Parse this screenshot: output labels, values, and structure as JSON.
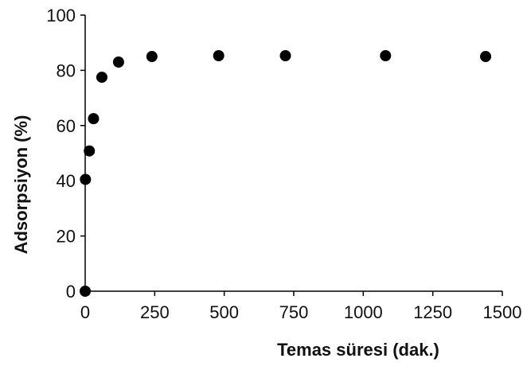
{
  "chart_data": {
    "type": "scatter",
    "xlabel": "Temas süresi (dak.)",
    "ylabel": "Adsorpsiyon (%)",
    "xlim": [
      0,
      1500
    ],
    "ylim": [
      0,
      100
    ],
    "xticks": [
      0,
      250,
      500,
      750,
      1000,
      1250,
      1500
    ],
    "yticks": [
      0,
      20,
      40,
      60,
      80,
      100
    ],
    "grid": false,
    "legend": "none",
    "marker_color": "#000000",
    "series": [
      {
        "x": [
          0,
          1,
          15,
          30,
          60,
          120,
          240,
          480,
          720,
          1080,
          1440
        ],
        "y": [
          0,
          40.5,
          50.8,
          62.5,
          77.5,
          83,
          85,
          85.3,
          85.3,
          85.3,
          85
        ]
      }
    ]
  }
}
